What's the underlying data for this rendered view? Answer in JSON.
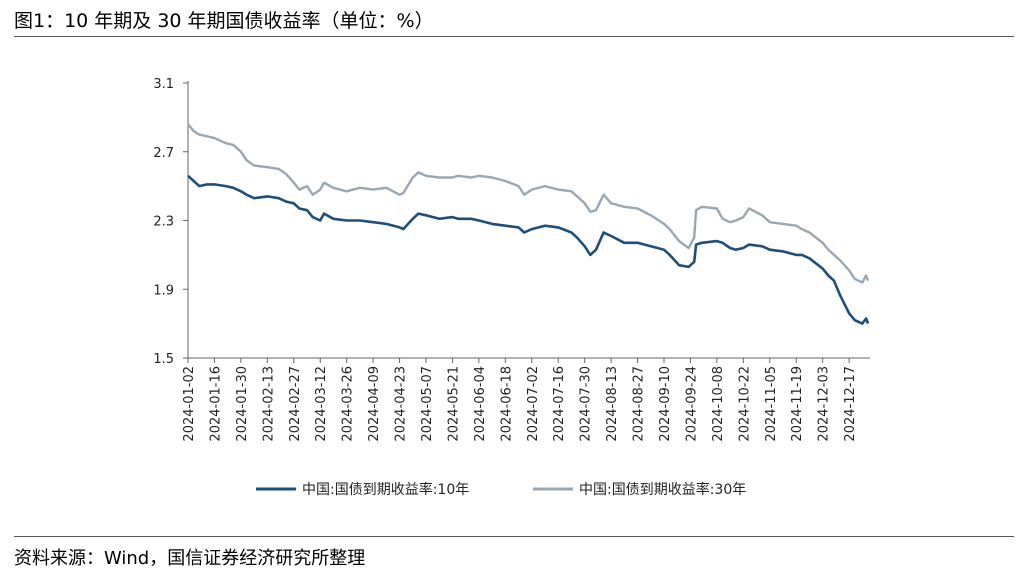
{
  "header": {
    "title": "图1：10 年期及 30 年期国债收益率（单位：%）"
  },
  "footer": {
    "source": "资料来源：Wind，国信证券经济研究所整理"
  },
  "colors": {
    "series_10y": "#1f4e79",
    "series_30y": "#9aa7b3",
    "axis": "#666666"
  },
  "chart_data": {
    "type": "line",
    "title": "图1：10 年期及 30 年期国债收益率（单位：%）",
    "xlabel": "",
    "ylabel": "",
    "ylim": [
      1.5,
      3.1
    ],
    "yticks": [
      "3.1",
      "2.7",
      "2.3",
      "1.9",
      "1.5"
    ],
    "xticks": [
      "2024-01-02",
      "2024-01-16",
      "2024-01-30",
      "2024-02-13",
      "2024-02-27",
      "2024-03-12",
      "2024-03-26",
      "2024-04-09",
      "2024-04-23",
      "2024-05-07",
      "2024-05-21",
      "2024-06-04",
      "2024-06-18",
      "2024-07-02",
      "2024-07-16",
      "2024-07-30",
      "2024-08-13",
      "2024-08-27",
      "2024-09-10",
      "2024-09-24",
      "2024-10-08",
      "2024-10-22",
      "2024-11-05",
      "2024-11-19",
      "2024-12-03",
      "2024-12-17"
    ],
    "x_range": [
      "2024-01-02",
      "2024-12-27"
    ],
    "grid": false,
    "legend_position": "bottom",
    "series": [
      {
        "name": "中国:国债到期收益率:10年",
        "points": [
          [
            "2024-01-02",
            2.56
          ],
          [
            "2024-01-05",
            2.53
          ],
          [
            "2024-01-08",
            2.5
          ],
          [
            "2024-01-12",
            2.51
          ],
          [
            "2024-01-16",
            2.51
          ],
          [
            "2024-01-22",
            2.5
          ],
          [
            "2024-01-26",
            2.49
          ],
          [
            "2024-01-30",
            2.47
          ],
          [
            "2024-02-02",
            2.45
          ],
          [
            "2024-02-06",
            2.43
          ],
          [
            "2024-02-13",
            2.44
          ],
          [
            "2024-02-19",
            2.43
          ],
          [
            "2024-02-23",
            2.41
          ],
          [
            "2024-02-27",
            2.4
          ],
          [
            "2024-03-01",
            2.37
          ],
          [
            "2024-03-05",
            2.36
          ],
          [
            "2024-03-08",
            2.32
          ],
          [
            "2024-03-12",
            2.3
          ],
          [
            "2024-03-14",
            2.34
          ],
          [
            "2024-03-19",
            2.31
          ],
          [
            "2024-03-26",
            2.3
          ],
          [
            "2024-04-02",
            2.3
          ],
          [
            "2024-04-09",
            2.29
          ],
          [
            "2024-04-16",
            2.28
          ],
          [
            "2024-04-23",
            2.26
          ],
          [
            "2024-04-25",
            2.25
          ],
          [
            "2024-04-30",
            2.31
          ],
          [
            "2024-05-03",
            2.34
          ],
          [
            "2024-05-07",
            2.33
          ],
          [
            "2024-05-14",
            2.31
          ],
          [
            "2024-05-21",
            2.32
          ],
          [
            "2024-05-24",
            2.31
          ],
          [
            "2024-05-31",
            2.31
          ],
          [
            "2024-06-04",
            2.3
          ],
          [
            "2024-06-11",
            2.28
          ],
          [
            "2024-06-18",
            2.27
          ],
          [
            "2024-06-25",
            2.26
          ],
          [
            "2024-06-28",
            2.23
          ],
          [
            "2024-07-02",
            2.25
          ],
          [
            "2024-07-09",
            2.27
          ],
          [
            "2024-07-16",
            2.26
          ],
          [
            "2024-07-23",
            2.23
          ],
          [
            "2024-07-26",
            2.2
          ],
          [
            "2024-07-30",
            2.15
          ],
          [
            "2024-08-02",
            2.1
          ],
          [
            "2024-08-05",
            2.13
          ],
          [
            "2024-08-09",
            2.23
          ],
          [
            "2024-08-13",
            2.21
          ],
          [
            "2024-08-20",
            2.17
          ],
          [
            "2024-08-27",
            2.17
          ],
          [
            "2024-09-03",
            2.15
          ],
          [
            "2024-09-10",
            2.13
          ],
          [
            "2024-09-13",
            2.1
          ],
          [
            "2024-09-18",
            2.04
          ],
          [
            "2024-09-23",
            2.03
          ],
          [
            "2024-09-26",
            2.06
          ],
          [
            "2024-09-27",
            2.16
          ],
          [
            "2024-09-30",
            2.17
          ],
          [
            "2024-10-08",
            2.18
          ],
          [
            "2024-10-11",
            2.17
          ],
          [
            "2024-10-15",
            2.14
          ],
          [
            "2024-10-18",
            2.13
          ],
          [
            "2024-10-22",
            2.14
          ],
          [
            "2024-10-25",
            2.16
          ],
          [
            "2024-11-01",
            2.15
          ],
          [
            "2024-11-05",
            2.13
          ],
          [
            "2024-11-12",
            2.12
          ],
          [
            "2024-11-19",
            2.1
          ],
          [
            "2024-11-22",
            2.1
          ],
          [
            "2024-11-26",
            2.08
          ],
          [
            "2024-12-03",
            2.02
          ],
          [
            "2024-12-06",
            1.98
          ],
          [
            "2024-12-09",
            1.95
          ],
          [
            "2024-12-12",
            1.87
          ],
          [
            "2024-12-17",
            1.76
          ],
          [
            "2024-12-20",
            1.72
          ],
          [
            "2024-12-24",
            1.7
          ],
          [
            "2024-12-26",
            1.73
          ],
          [
            "2024-12-27",
            1.7
          ]
        ]
      },
      {
        "name": "中国:国债到期收益率:30年",
        "points": [
          [
            "2024-01-02",
            2.86
          ],
          [
            "2024-01-05",
            2.82
          ],
          [
            "2024-01-08",
            2.8
          ],
          [
            "2024-01-12",
            2.79
          ],
          [
            "2024-01-16",
            2.78
          ],
          [
            "2024-01-22",
            2.75
          ],
          [
            "2024-01-26",
            2.74
          ],
          [
            "2024-01-30",
            2.7
          ],
          [
            "2024-02-02",
            2.65
          ],
          [
            "2024-02-06",
            2.62
          ],
          [
            "2024-02-13",
            2.61
          ],
          [
            "2024-02-19",
            2.6
          ],
          [
            "2024-02-23",
            2.57
          ],
          [
            "2024-02-27",
            2.52
          ],
          [
            "2024-03-01",
            2.48
          ],
          [
            "2024-03-05",
            2.5
          ],
          [
            "2024-03-08",
            2.45
          ],
          [
            "2024-03-12",
            2.48
          ],
          [
            "2024-03-14",
            2.52
          ],
          [
            "2024-03-19",
            2.49
          ],
          [
            "2024-03-26",
            2.47
          ],
          [
            "2024-04-02",
            2.49
          ],
          [
            "2024-04-09",
            2.48
          ],
          [
            "2024-04-16",
            2.49
          ],
          [
            "2024-04-23",
            2.45
          ],
          [
            "2024-04-25",
            2.46
          ],
          [
            "2024-04-30",
            2.55
          ],
          [
            "2024-05-03",
            2.58
          ],
          [
            "2024-05-07",
            2.56
          ],
          [
            "2024-05-14",
            2.55
          ],
          [
            "2024-05-21",
            2.55
          ],
          [
            "2024-05-24",
            2.56
          ],
          [
            "2024-05-31",
            2.55
          ],
          [
            "2024-06-04",
            2.56
          ],
          [
            "2024-06-11",
            2.55
          ],
          [
            "2024-06-18",
            2.53
          ],
          [
            "2024-06-25",
            2.5
          ],
          [
            "2024-06-28",
            2.45
          ],
          [
            "2024-07-02",
            2.48
          ],
          [
            "2024-07-09",
            2.5
          ],
          [
            "2024-07-16",
            2.48
          ],
          [
            "2024-07-23",
            2.47
          ],
          [
            "2024-07-26",
            2.44
          ],
          [
            "2024-07-30",
            2.4
          ],
          [
            "2024-08-02",
            2.35
          ],
          [
            "2024-08-05",
            2.36
          ],
          [
            "2024-08-09",
            2.45
          ],
          [
            "2024-08-13",
            2.4
          ],
          [
            "2024-08-20",
            2.38
          ],
          [
            "2024-08-27",
            2.37
          ],
          [
            "2024-09-03",
            2.33
          ],
          [
            "2024-09-10",
            2.28
          ],
          [
            "2024-09-13",
            2.25
          ],
          [
            "2024-09-18",
            2.18
          ],
          [
            "2024-09-23",
            2.14
          ],
          [
            "2024-09-26",
            2.2
          ],
          [
            "2024-09-27",
            2.36
          ],
          [
            "2024-09-30",
            2.38
          ],
          [
            "2024-10-08",
            2.37
          ],
          [
            "2024-10-11",
            2.31
          ],
          [
            "2024-10-15",
            2.29
          ],
          [
            "2024-10-18",
            2.3
          ],
          [
            "2024-10-22",
            2.32
          ],
          [
            "2024-10-25",
            2.37
          ],
          [
            "2024-11-01",
            2.33
          ],
          [
            "2024-11-05",
            2.29
          ],
          [
            "2024-11-12",
            2.28
          ],
          [
            "2024-11-19",
            2.27
          ],
          [
            "2024-11-22",
            2.25
          ],
          [
            "2024-11-26",
            2.23
          ],
          [
            "2024-12-03",
            2.17
          ],
          [
            "2024-12-06",
            2.13
          ],
          [
            "2024-12-09",
            2.1
          ],
          [
            "2024-12-12",
            2.07
          ],
          [
            "2024-12-17",
            2.01
          ],
          [
            "2024-12-20",
            1.96
          ],
          [
            "2024-12-24",
            1.94
          ],
          [
            "2024-12-26",
            1.98
          ],
          [
            "2024-12-27",
            1.95
          ]
        ]
      }
    ]
  }
}
